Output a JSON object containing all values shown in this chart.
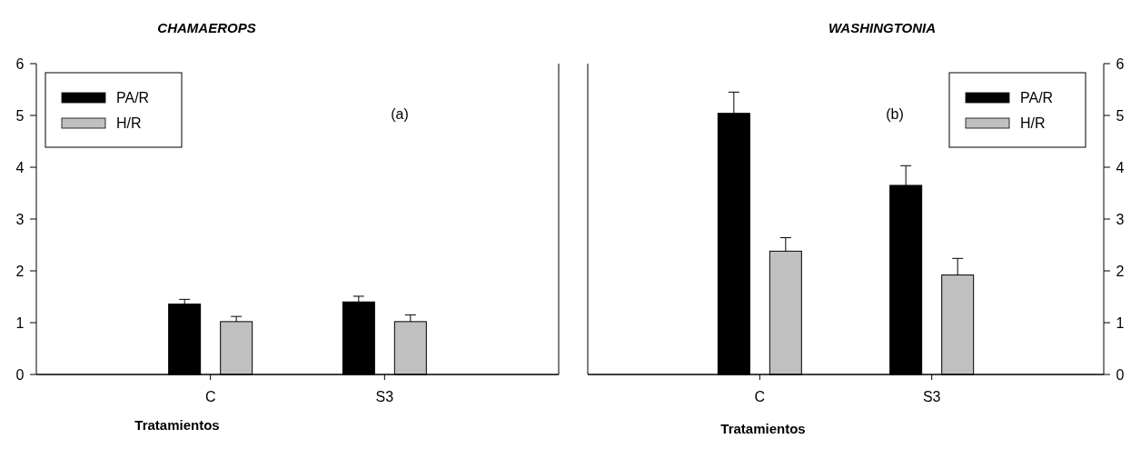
{
  "chart_data": [
    {
      "type": "bar",
      "title": "CHAMAEROPS",
      "xlabel": "Tratamientos",
      "categories": [
        "C",
        "S3"
      ],
      "annotations": [
        "(a)"
      ],
      "legend": "top left",
      "ylim": [
        0,
        6
      ],
      "yticks": [
        0,
        1,
        2,
        3,
        4,
        5,
        6
      ],
      "series": [
        {
          "name": "PA/R",
          "color": "#000000",
          "values": [
            1.36,
            1.4
          ],
          "errors": [
            0.09,
            0.11
          ]
        },
        {
          "name": "H/R",
          "color": "#c0c0c0",
          "values": [
            1.02,
            1.02
          ],
          "errors": [
            0.1,
            0.13
          ]
        }
      ]
    },
    {
      "type": "bar",
      "title": "WASHINGTONIA",
      "xlabel": "Tratamientos",
      "categories": [
        "C",
        "S3"
      ],
      "annotations": [
        "(b)"
      ],
      "legend": "top right",
      "ylim": [
        0,
        6
      ],
      "yticks": [
        0,
        1,
        2,
        3,
        4,
        5,
        6
      ],
      "series": [
        {
          "name": "PA/R",
          "color": "#000000",
          "values": [
            5.04,
            3.65
          ],
          "errors": [
            0.41,
            0.38
          ]
        },
        {
          "name": "H/R",
          "color": "#c0c0c0",
          "values": [
            2.38,
            1.92
          ],
          "errors": [
            0.26,
            0.32
          ]
        }
      ]
    }
  ]
}
